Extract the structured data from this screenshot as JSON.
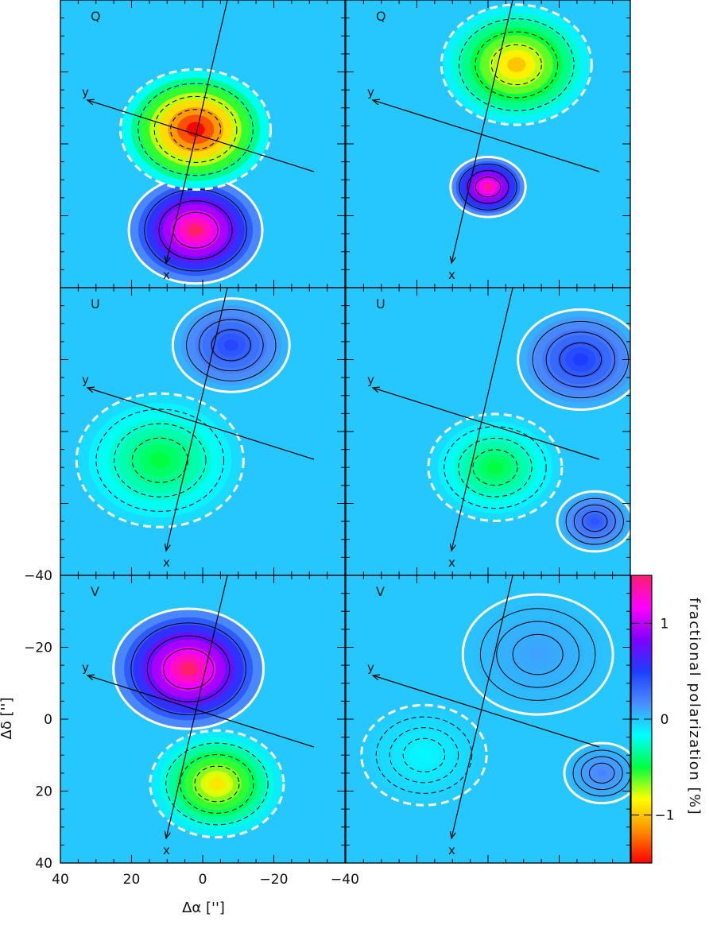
{
  "chart_data": {
    "type": "heatmap",
    "layout": "3 rows x 2 columns of polarization maps",
    "xlabel": "Δα  ['']",
    "ylabel": "Δδ  ['']",
    "xlim": [
      40,
      -40
    ],
    "ylim": [
      -40,
      40
    ],
    "x_ticks": [
      "40",
      "20",
      "0",
      "−20",
      "−40"
    ],
    "y_ticks": [
      "40",
      "20",
      "0",
      "−20",
      "−40"
    ],
    "colorbar": {
      "label": "fractional polarization [%]",
      "range": [
        -1.5,
        1.5
      ],
      "ticks": [
        "1",
        "0",
        "−1"
      ],
      "colors": [
        "#ff0000",
        "#ff8c00",
        "#ffff00",
        "#00ff40",
        "#00ffff",
        "#4c8cff",
        "#1e3cff",
        "#8000ff",
        "#ff00ff",
        "#ff1e6e"
      ]
    },
    "panels": [
      {
        "label": "Q",
        "row": 0,
        "col": 0,
        "blobs": [
          {
            "cx": 2,
            "cy": 24,
            "r": 16,
            "value": 1.5
          },
          {
            "cx": 2,
            "cy": -4,
            "r": 18,
            "value": -1.5
          }
        ]
      },
      {
        "label": "Q",
        "row": 0,
        "col": 1,
        "blobs": [
          {
            "cx": 0,
            "cy": 12,
            "r": 9,
            "value": 1.4
          },
          {
            "cx": -8,
            "cy": -22,
            "r": 18,
            "value": -1.0
          }
        ]
      },
      {
        "label": "U",
        "row": 1,
        "col": 0,
        "blobs": [
          {
            "cx": 12,
            "cy": 8,
            "r": 20,
            "value": -0.5
          },
          {
            "cx": -8,
            "cy": -24,
            "r": 14,
            "value": 0.45
          }
        ]
      },
      {
        "label": "U",
        "row": 1,
        "col": 1,
        "blobs": [
          {
            "cx": -30,
            "cy": 25,
            "r": 9,
            "value": 0.4
          },
          {
            "cx": -2,
            "cy": 10,
            "r": 16,
            "value": -0.5
          },
          {
            "cx": -26,
            "cy": -20,
            "r": 15,
            "value": 0.5
          }
        ]
      },
      {
        "label": "V",
        "row": 2,
        "col": 0,
        "blobs": [
          {
            "cx": -4,
            "cy": 18,
            "r": 16,
            "value": -0.9
          },
          {
            "cx": 4,
            "cy": -14,
            "r": 18,
            "value": 1.5
          }
        ]
      },
      {
        "label": "V",
        "row": 2,
        "col": 1,
        "blobs": [
          {
            "cx": -32,
            "cy": 15,
            "r": 9,
            "value": 0.2
          },
          {
            "cx": 18,
            "cy": 10,
            "r": 15,
            "value": -0.15
          },
          {
            "cx": -14,
            "cy": -18,
            "r": 18,
            "value": 0.1
          }
        ]
      }
    ],
    "axis_markers": {
      "x_tip": "x",
      "y_tip": "y"
    }
  }
}
